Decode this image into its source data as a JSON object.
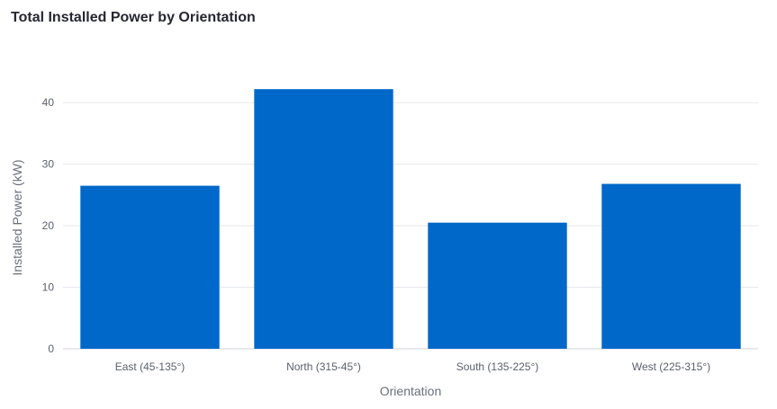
{
  "chart_data": {
    "type": "bar",
    "title": "Total Installed Power by Orientation",
    "xlabel": "Orientation",
    "ylabel": "Installed Power (kW)",
    "categories": [
      "East (45-135°)",
      "North (315-45°)",
      "South (135-225°)",
      "West (225-315°)"
    ],
    "values": [
      26.5,
      42.2,
      20.5,
      26.8
    ],
    "ylim": [
      0,
      45
    ],
    "yticks": [
      "0",
      "10",
      "20",
      "30",
      "40"
    ],
    "grid": true,
    "bar_color": "#0068c9"
  }
}
